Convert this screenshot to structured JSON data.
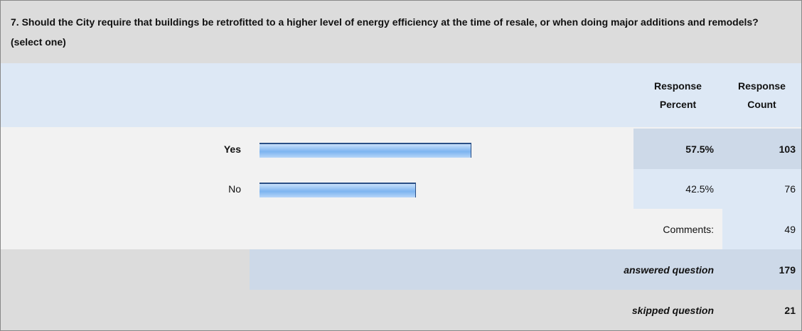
{
  "chart_data": {
    "type": "bar",
    "orientation": "horizontal",
    "title": "7. Should the City require that buildings be retrofitted to a higher level of energy efficiency at the time of resale, or when doing major additions and remodels? (select one)",
    "columns": [
      "Response Percent",
      "Response Count"
    ],
    "categories": [
      "Yes",
      "No"
    ],
    "values": [
      57.5,
      42.5
    ],
    "value_labels": [
      "57.5%",
      "42.5%"
    ],
    "counts": [
      103,
      76
    ],
    "xlim": [
      0,
      100
    ],
    "comments_label": "Comments:",
    "comments_count": 49,
    "answered_label": "answered question",
    "answered": 179,
    "skipped_label": "skipped question",
    "skipped": 21
  }
}
